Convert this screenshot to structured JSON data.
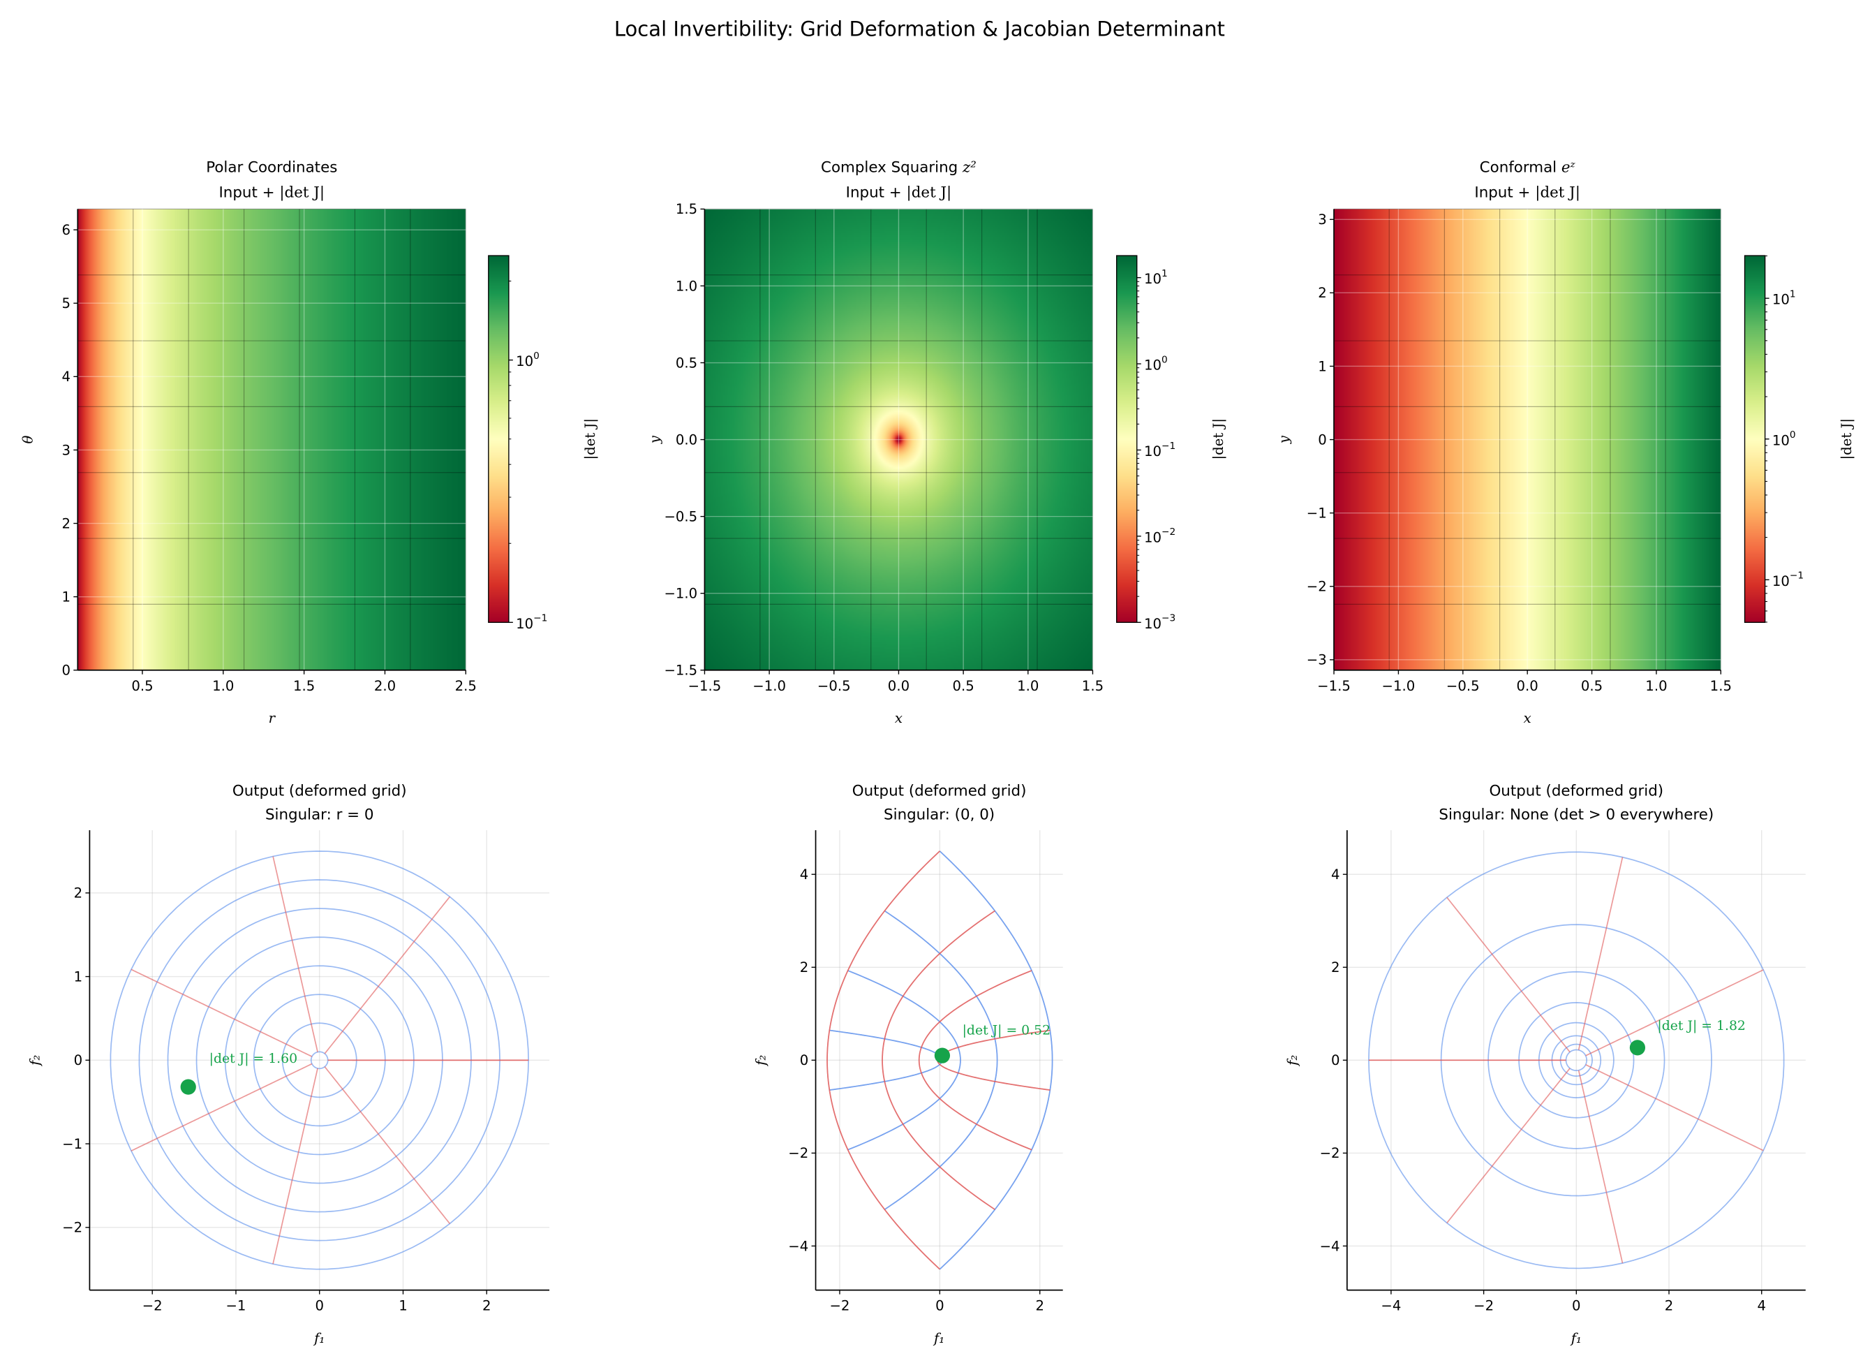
{
  "figure": {
    "title": "Local Invertibility: Grid Deformation & Jacobian Determinant"
  },
  "colors": {
    "colormap": "RdYlGn",
    "constant_second_coordinate_lines": "#e05555",
    "constant_first_coordinate_lines": "#6495ed",
    "marker": "#16a34a",
    "input_grid_overlay": "#000000"
  },
  "chart_data": [
    {
      "id": "polar",
      "type": "heatmap",
      "title": "Polar Coordinates",
      "title_math": "",
      "subtitle": "Input + ",
      "subtitle_math": "|det J|",
      "xlabel": "r",
      "ylabel": "θ",
      "xlim": [
        0.1,
        2.5
      ],
      "ylim": [
        0,
        6.283
      ],
      "xticks": [
        0.5,
        1.0,
        1.5,
        2.0,
        2.5
      ],
      "xtick_labels": [
        "0.5",
        "1.0",
        "1.5",
        "2.0",
        "2.5"
      ],
      "yticks": [
        0,
        1,
        2,
        3,
        4,
        5,
        6
      ],
      "ytick_labels": [
        "0",
        "1",
        "2",
        "3",
        "4",
        "5",
        "6"
      ],
      "grid": true,
      "input_grid": {
        "x": [
          0.1,
          2.5
        ],
        "y": [
          0,
          6.283
        ],
        "n": 8
      },
      "colorbar": {
        "label": "|det J|",
        "scale": "log",
        "range": [
          0.1,
          2.5
        ],
        "ticks": [
          {
            "value": 0.1,
            "base": "10",
            "exp": "−1"
          },
          {
            "value": 1,
            "base": "10",
            "exp": "0"
          }
        ]
      }
    },
    {
      "id": "squaring",
      "type": "heatmap",
      "title": "Complex Squaring ",
      "title_math": "z²",
      "subtitle": "Input + ",
      "subtitle_math": "|det J|",
      "xlabel": "x",
      "ylabel": "y",
      "xlim": [
        -1.5,
        1.5
      ],
      "ylim": [
        -1.5,
        1.5
      ],
      "xticks": [
        -1.5,
        -1.0,
        -0.5,
        0.0,
        0.5,
        1.0,
        1.5
      ],
      "xtick_labels": [
        "−1.5",
        "−1.0",
        "−0.5",
        "0.0",
        "0.5",
        "1.0",
        "1.5"
      ],
      "yticks": [
        -1.5,
        -1.0,
        -0.5,
        0.0,
        0.5,
        1.0,
        1.5
      ],
      "ytick_labels": [
        "−1.5",
        "−1.0",
        "−0.5",
        "0.0",
        "0.5",
        "1.0",
        "1.5"
      ],
      "grid": true,
      "input_grid": {
        "x": [
          -1.5,
          1.5
        ],
        "y": [
          -1.5,
          1.5
        ],
        "n": 8
      },
      "colorbar": {
        "label": "|det J|",
        "scale": "log",
        "range": [
          0.001,
          18
        ],
        "ticks": [
          {
            "value": 0.001,
            "base": "10",
            "exp": "−3"
          },
          {
            "value": 0.01,
            "base": "10",
            "exp": "−2"
          },
          {
            "value": 0.1,
            "base": "10",
            "exp": "−1"
          },
          {
            "value": 1,
            "base": "10",
            "exp": "0"
          },
          {
            "value": 10,
            "base": "10",
            "exp": "1"
          }
        ]
      }
    },
    {
      "id": "exp",
      "type": "heatmap",
      "title": "Conformal ",
      "title_math": "eᶻ",
      "subtitle": "Input + ",
      "subtitle_math": "|det J|",
      "xlabel": "x",
      "ylabel": "y",
      "xlim": [
        -1.5,
        1.5
      ],
      "ylim": [
        -3.1416,
        3.1416
      ],
      "xticks": [
        -1.5,
        -1.0,
        -0.5,
        0.0,
        0.5,
        1.0,
        1.5
      ],
      "xtick_labels": [
        "−1.5",
        "−1.0",
        "−0.5",
        "0.0",
        "0.5",
        "1.0",
        "1.5"
      ],
      "yticks": [
        -3,
        -2,
        -1,
        0,
        1,
        2,
        3
      ],
      "ytick_labels": [
        "−3",
        "−2",
        "−1",
        "0",
        "1",
        "2",
        "3"
      ],
      "grid": true,
      "input_grid": {
        "x": [
          -1.5,
          1.5
        ],
        "y": [
          -3.1416,
          3.1416
        ],
        "n": 8
      },
      "colorbar": {
        "label": "|det J|",
        "scale": "log",
        "range": [
          0.0498,
          20.09
        ],
        "ticks": [
          {
            "value": 0.1,
            "base": "10",
            "exp": "−1"
          },
          {
            "value": 1,
            "base": "10",
            "exp": "0"
          },
          {
            "value": 10,
            "base": "10",
            "exp": "1"
          }
        ]
      }
    },
    {
      "id": "polar",
      "type": "line",
      "title": "Output (deformed grid)",
      "subtitle": "Singular: r = 0",
      "xlabel": "f₁",
      "ylabel": "f₂",
      "xlim": [
        -2.75,
        2.75
      ],
      "ylim": [
        -2.75,
        2.75
      ],
      "xticks": [
        -2,
        -1,
        0,
        1,
        2
      ],
      "xtick_labels": [
        "−2",
        "−1",
        "0",
        "1",
        "2"
      ],
      "yticks": [
        -2,
        -1,
        0,
        1,
        2
      ],
      "ytick_labels": [
        "−2",
        "−1",
        "0",
        "1",
        "2"
      ],
      "grid": true,
      "marker": {
        "x": -1.57,
        "y": -0.32
      },
      "annotation": {
        "text": "|det J| = 1.60",
        "x": -1.32,
        "y": -0.03
      }
    },
    {
      "id": "squaring",
      "type": "line",
      "title": "Output (deformed grid)",
      "subtitle": "Singular: (0, 0)",
      "xlabel": "f₁",
      "ylabel": "f₂",
      "xlim": [
        -2.48,
        2.46
      ],
      "ylim": [
        -4.95,
        4.95
      ],
      "xticks": [
        -2,
        0,
        2
      ],
      "xtick_labels": [
        "−2",
        "0",
        "2"
      ],
      "yticks": [
        -4,
        -2,
        0,
        2,
        4
      ],
      "ytick_labels": [
        "−4",
        "−2",
        "0",
        "2",
        "4"
      ],
      "grid": true,
      "marker": {
        "x": 0.05,
        "y": 0.1
      },
      "annotation": {
        "text": "|det J| = 0.52",
        "x": 0.45,
        "y": 0.55
      }
    },
    {
      "id": "exp",
      "type": "line",
      "title": "Output (deformed grid)",
      "subtitle": "Singular: None (det > 0 everywhere)",
      "xlabel": "f₁",
      "ylabel": "f₂",
      "xlim": [
        -4.95,
        4.95
      ],
      "ylim": [
        -4.95,
        4.95
      ],
      "xticks": [
        -4,
        -2,
        0,
        2,
        4
      ],
      "xtick_labels": [
        "−4",
        "−2",
        "0",
        "2",
        "4"
      ],
      "yticks": [
        -4,
        -2,
        0,
        2,
        4
      ],
      "ytick_labels": [
        "−4",
        "−2",
        "0",
        "2",
        "4"
      ],
      "grid": true,
      "marker": {
        "x": 1.32,
        "y": 0.27
      },
      "annotation": {
        "text": "|det J| = 1.82",
        "x": 1.75,
        "y": 0.65
      }
    }
  ]
}
